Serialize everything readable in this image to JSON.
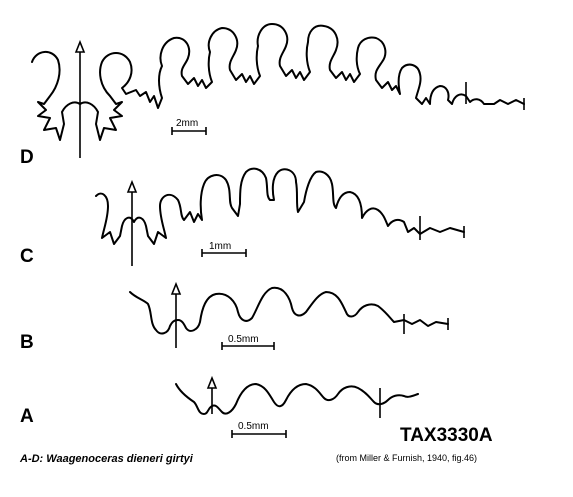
{
  "panels": [
    {
      "letter": "D",
      "scale": "2mm"
    },
    {
      "letter": "C",
      "scale": "1mm"
    },
    {
      "letter": "B",
      "scale": "0.5mm"
    },
    {
      "letter": "A",
      "scale": "0.5mm"
    }
  ],
  "code": "TAX3330A",
  "caption": "A-D: Waagenoceras dieneri girtyi",
  "source": "(from Miller & Furnish, 1940, fig.46)"
}
